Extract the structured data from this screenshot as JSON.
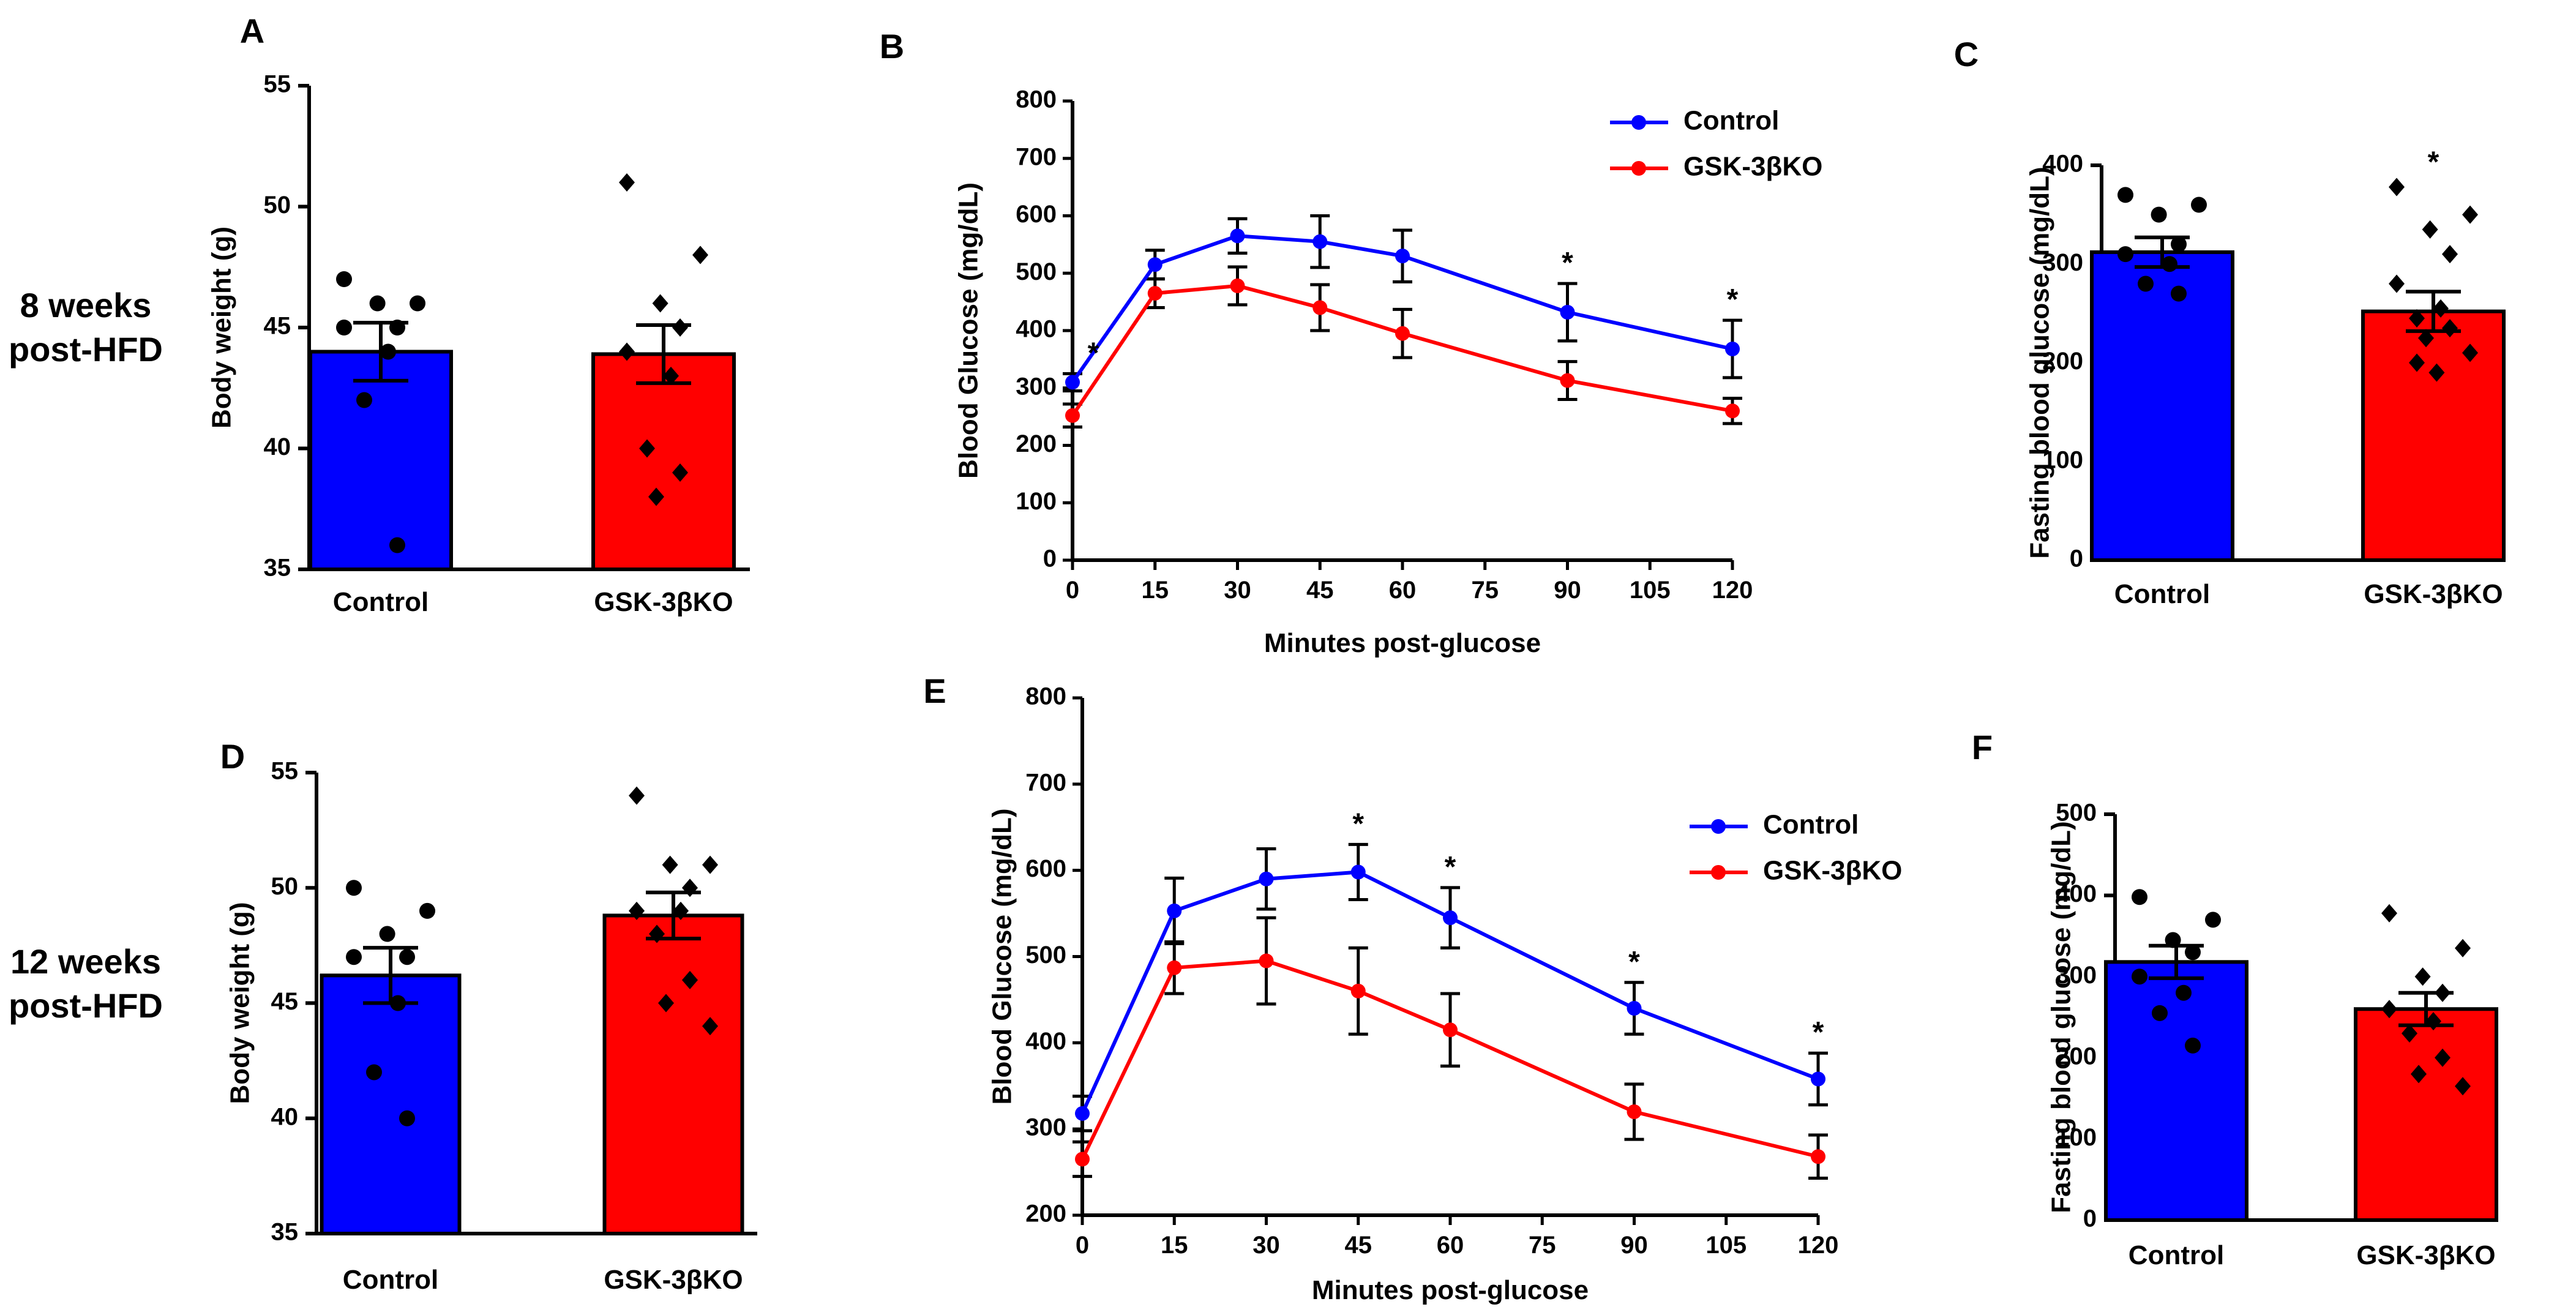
{
  "row_labels": [
    {
      "lines": [
        "8 weeks",
        "post-HFD"
      ]
    },
    {
      "lines": [
        "12 weeks",
        "post-HFD"
      ]
    }
  ],
  "colors": {
    "control": "#0000ff",
    "ko": "#ff0000",
    "axis": "#000000"
  },
  "chart_data": [
    {
      "panel": "A",
      "type": "bar",
      "title": "",
      "xlabel": "",
      "ylabel": "Body weight (g)",
      "ylim": [
        35,
        55
      ],
      "yticks": [
        35,
        40,
        45,
        50,
        55
      ],
      "categories": [
        "Control",
        "GSK-3βKO"
      ],
      "values": [
        44.0,
        43.9
      ],
      "sem": [
        1.2,
        1.2
      ],
      "points": [
        [
          47,
          46,
          46,
          45,
          45,
          44,
          42,
          36
        ],
        [
          51,
          48,
          46,
          45,
          44,
          43,
          40,
          39,
          38
        ]
      ],
      "markers": [
        "circle",
        "diamond"
      ],
      "significance": [
        "",
        ""
      ]
    },
    {
      "panel": "B",
      "type": "line",
      "title": "",
      "xlabel": "Minutes post-glucose",
      "ylabel": "Blood Glucose (mg/dL)",
      "xlim": [
        0,
        120
      ],
      "ylim": [
        0,
        800
      ],
      "xticks": [
        0,
        15,
        30,
        45,
        60,
        75,
        90,
        105,
        120
      ],
      "yticks": [
        0,
        100,
        200,
        300,
        400,
        500,
        600,
        700,
        800
      ],
      "x": [
        0,
        15,
        30,
        45,
        60,
        90,
        120
      ],
      "series": [
        {
          "name": "Control",
          "values": [
            310,
            515,
            565,
            555,
            530,
            432,
            368
          ],
          "sem": [
            15,
            25,
            30,
            45,
            45,
            50,
            50
          ]
        },
        {
          "name": "GSK-3βKO",
          "values": [
            252,
            465,
            478,
            440,
            395,
            313,
            260
          ],
          "sem": [
            20,
            25,
            33,
            40,
            42,
            33,
            22
          ]
        }
      ],
      "significance": [
        {
          "x": 0,
          "label": "*"
        },
        {
          "x": 90,
          "label": "*"
        },
        {
          "x": 120,
          "label": "*"
        }
      ],
      "legend": "top-right"
    },
    {
      "panel": "C",
      "type": "bar",
      "title": "",
      "xlabel": "",
      "ylabel": "Fasting blood glucose (mg/dL)",
      "ylim": [
        0,
        400
      ],
      "yticks": [
        0,
        100,
        200,
        300,
        400
      ],
      "categories": [
        "Control",
        "GSK-3βKO"
      ],
      "values": [
        312,
        252
      ],
      "sem": [
        15,
        20
      ],
      "points": [
        [
          370,
          360,
          350,
          320,
          310,
          300,
          280,
          270
        ],
        [
          378,
          350,
          335,
          310,
          280,
          255,
          245,
          235,
          225,
          210,
          200,
          190
        ]
      ],
      "markers": [
        "circle",
        "diamond"
      ],
      "significance": [
        "",
        "*"
      ]
    },
    {
      "panel": "D",
      "type": "bar",
      "title": "",
      "xlabel": "",
      "ylabel": "Body weight (g)",
      "ylim": [
        35,
        55
      ],
      "yticks": [
        35,
        40,
        45,
        50,
        55
      ],
      "categories": [
        "Control",
        "GSK-3βKO"
      ],
      "values": [
        46.2,
        48.8
      ],
      "sem": [
        1.2,
        1.0
      ],
      "points": [
        [
          50,
          49,
          48,
          47,
          47,
          45,
          42,
          40
        ],
        [
          54,
          51,
          51,
          50,
          49,
          49,
          48,
          46,
          45,
          44
        ]
      ],
      "markers": [
        "circle",
        "diamond"
      ],
      "significance": [
        "",
        ""
      ]
    },
    {
      "panel": "E",
      "type": "line",
      "title": "",
      "xlabel": "Minutes post-glucose",
      "ylabel": "Blood Glucose (mg/dL)",
      "xlim": [
        0,
        120
      ],
      "ylim": [
        200,
        800
      ],
      "xticks": [
        0,
        15,
        30,
        45,
        60,
        75,
        90,
        105,
        120
      ],
      "yticks": [
        200,
        300,
        400,
        500,
        600,
        700,
        800
      ],
      "x": [
        0,
        15,
        30,
        45,
        60,
        90,
        120
      ],
      "series": [
        {
          "name": "Control",
          "values": [
            318,
            553,
            590,
            598,
            545,
            440,
            358
          ],
          "sem": [
            20,
            38,
            35,
            32,
            35,
            30,
            30
          ]
        },
        {
          "name": "GSK-3βKO",
          "values": [
            265,
            487,
            495,
            460,
            415,
            320,
            268
          ],
          "sem": [
            20,
            30,
            50,
            50,
            42,
            32,
            25
          ]
        }
      ],
      "significance": [
        {
          "x": 45,
          "label": "*"
        },
        {
          "x": 60,
          "label": "*"
        },
        {
          "x": 90,
          "label": "*"
        },
        {
          "x": 120,
          "label": "*"
        }
      ],
      "legend": "top-right"
    },
    {
      "panel": "F",
      "type": "bar",
      "title": "",
      "xlabel": "",
      "ylabel": "Fasting blood glucose (mg/dL)",
      "ylim": [
        0,
        500
      ],
      "yticks": [
        0,
        100,
        200,
        300,
        400,
        500
      ],
      "categories": [
        "Control",
        "GSK-3βKO"
      ],
      "values": [
        318,
        260
      ],
      "sem": [
        20,
        20
      ],
      "points": [
        [
          398,
          370,
          345,
          330,
          300,
          280,
          255,
          215
        ],
        [
          378,
          335,
          300,
          280,
          260,
          245,
          230,
          200,
          180,
          165
        ]
      ],
      "markers": [
        "circle",
        "diamond"
      ],
      "significance": [
        "",
        ""
      ]
    }
  ]
}
